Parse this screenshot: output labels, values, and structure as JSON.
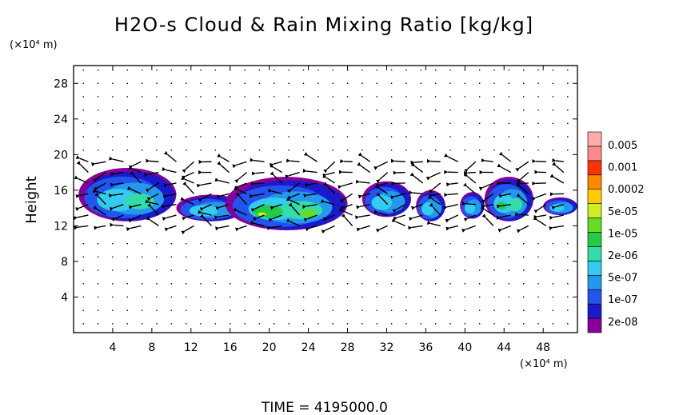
{
  "chart_data": {
    "type": "heatmap",
    "title": "H2O-s Cloud & Rain Mixing Ratio [kg/kg]",
    "ylabel": "Height",
    "xlabel": "",
    "x_unit": "(×10⁴ m)",
    "y_unit": "(×10⁴ m)",
    "xlim": [
      0,
      51.5
    ],
    "ylim": [
      0,
      30
    ],
    "x_ticks": [
      "4",
      "8",
      "12",
      "16",
      "20",
      "24",
      "28",
      "32",
      "36",
      "40",
      "44",
      "48"
    ],
    "y_ticks": [
      "4",
      "8",
      "12",
      "16",
      "20",
      "24",
      "28"
    ],
    "time_label": "TIME",
    "time_value": "4195000.0",
    "colorbar": {
      "labels": [
        "0.005",
        "0.001",
        "0.0002",
        "5e-05",
        "1e-05",
        "2e-06",
        "5e-07",
        "1e-07",
        "2e-08"
      ],
      "colors": [
        "#880099",
        "#1a1acc",
        "#2255ee",
        "#2299ee",
        "#33ccee",
        "#33ddaa",
        "#22cc44",
        "#66dd22",
        "#ccee22",
        "#ffcc00",
        "#ff8800",
        "#ff3300",
        "#ff8888",
        "#ffaaaa"
      ]
    },
    "cloud_regions": [
      {
        "x": [
          0.5,
          10.5
        ],
        "y": [
          12.5,
          18.5
        ],
        "level": "1e-07 to 5e-05"
      },
      {
        "x": [
          10.5,
          17.5
        ],
        "y": [
          12.5,
          15.5
        ],
        "level": "1e-07 to 2e-06"
      },
      {
        "x": [
          15.5,
          28
        ],
        "y": [
          11.5,
          17.5
        ],
        "level": "1e-07 to 0.0002"
      },
      {
        "x": [
          29.5,
          34.5
        ],
        "y": [
          13,
          17
        ],
        "level": "1e-07 to 2e-06"
      },
      {
        "x": [
          35,
          38
        ],
        "y": [
          12.5,
          16
        ],
        "level": "1e-07 to 2e-06"
      },
      {
        "x": [
          39.5,
          42
        ],
        "y": [
          12.8,
          15.8
        ],
        "level": "1e-07 to 5e-07"
      },
      {
        "x": [
          42,
          47
        ],
        "y": [
          12.5,
          17.5
        ],
        "level": "1e-07 to 1e-05"
      },
      {
        "x": [
          48,
          51.5
        ],
        "y": [
          13.2,
          15.2
        ],
        "level": "1e-07 to 5e-07"
      }
    ]
  }
}
